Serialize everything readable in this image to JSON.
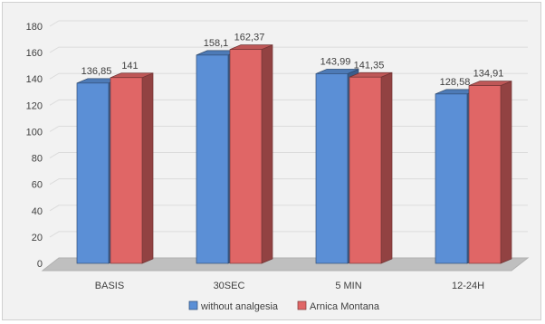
{
  "chart_data": {
    "type": "bar",
    "categories": [
      "BASIS",
      "30SEC",
      "5 MIN",
      "12-24H"
    ],
    "series": [
      {
        "name": "without analgesia",
        "values": [
          136.85,
          158.1,
          143.99,
          128.58
        ],
        "labels": [
          "136,85",
          "158,1",
          "143,99",
          "128,58"
        ],
        "color": "#5b8fd6"
      },
      {
        "name": "Arnica Montana",
        "values": [
          141,
          162.37,
          141.35,
          134.91
        ],
        "labels": [
          "141",
          "162,37",
          "141,35",
          "134,91"
        ],
        "color": "#e06666"
      }
    ],
    "title": "",
    "xlabel": "",
    "ylabel": "",
    "ylim": [
      0,
      180
    ],
    "yticks": [
      0,
      20,
      40,
      60,
      80,
      100,
      120,
      140,
      160,
      180
    ],
    "grid": true,
    "legend_position": "bottom",
    "three_d": true
  }
}
